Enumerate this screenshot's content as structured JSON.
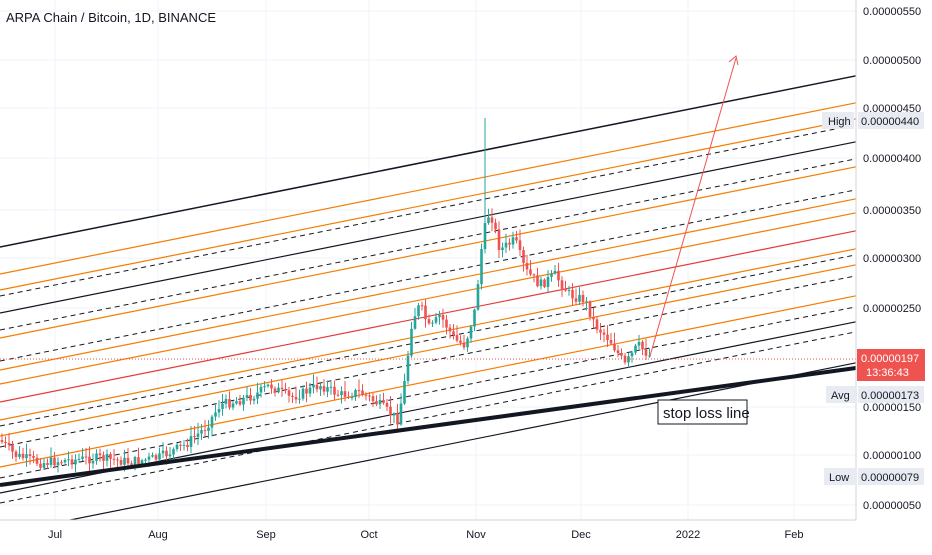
{
  "header": {
    "title": "ARPA Chain / Bitcoin, 1D, BINANCE"
  },
  "annotation": {
    "stop_loss": "stop loss line"
  },
  "price_axis": {
    "ticks": [
      "0.00000550",
      "0.00000500",
      "0.00000450",
      "0.00000400",
      "0.00000350",
      "0.00000300",
      "0.00000250",
      "0.00000150",
      "0.00000100",
      "0.00000050"
    ],
    "labels": {
      "high_label": "High",
      "high_value": "0.00000440",
      "current_value": "0.00000197",
      "countdown": "13:36:43",
      "avg_label": "Avg",
      "avg_value": "0.00000173",
      "low_label": "Low",
      "low_value": "0.00000079"
    }
  },
  "time_axis": {
    "ticks": [
      "Jul",
      "Aug",
      "Sep",
      "Oct",
      "Nov",
      "Dec",
      "2022",
      "Feb"
    ]
  },
  "colors": {
    "up": "#26a69a",
    "down": "#ef5350",
    "fib_orange": "#f57c00",
    "midline_red": "#e53935",
    "line_black": "#131722",
    "label_bg": "#e8ecf2",
    "price_red": "#ef5350"
  },
  "chart_data": {
    "type": "candlestick",
    "title": "ARPA Chain / Bitcoin, 1D, BINANCE",
    "y_unit": "BTC",
    "ylim": [
      2e-07,
      5.9e-06
    ],
    "x_ticks": [
      "Jul",
      "Aug",
      "Sep",
      "Oct",
      "Nov",
      "Dec",
      "2022",
      "Feb"
    ],
    "price_path": [
      {
        "month": "Jul",
        "close": 9.8e-07
      },
      {
        "month": "Jul",
        "close": 9e-07
      },
      {
        "month": "Aug",
        "close": 9.3e-07
      },
      {
        "month": "Aug",
        "close": 1.4e-06
      },
      {
        "month": "Aug",
        "close": 1.62e-06
      },
      {
        "month": "Sep",
        "close": 1.6e-06
      },
      {
        "month": "Sep",
        "close": 1.7e-06
      },
      {
        "month": "Oct",
        "close": 1.55e-06
      },
      {
        "month": "Oct",
        "close": 1.25e-06
      },
      {
        "month": "Oct",
        "close": 2.4e-06
      },
      {
        "month": "Oct",
        "close": 2.2e-06
      },
      {
        "month": "Nov",
        "close": 3.3e-06
      },
      {
        "month": "Nov",
        "close": 3.2e-06
      },
      {
        "month": "Nov",
        "close": 3e-06
      },
      {
        "month": "Dec",
        "close": 2.6e-06
      },
      {
        "month": "Dec",
        "close": 1.97e-06
      }
    ],
    "current": 1.97e-06,
    "high": 4.4e-06,
    "avg": 1.73e-06,
    "low": 7.9e-07
  }
}
